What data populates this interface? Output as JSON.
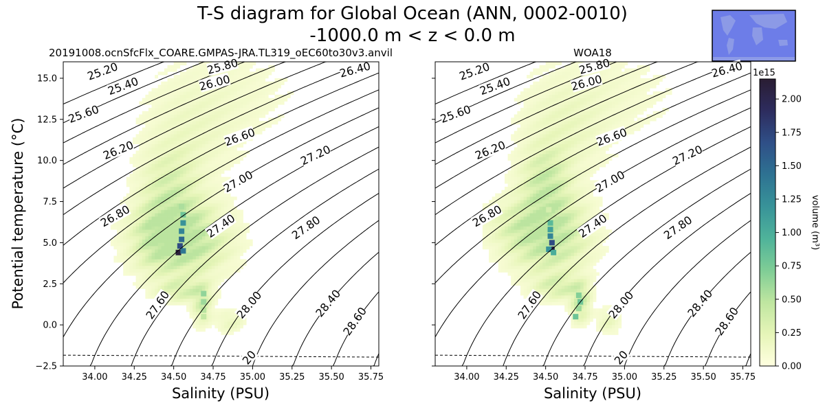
{
  "figure": {
    "title_line1": "T-S diagram for Global Ocean (ANN, 0002-0010)",
    "title_line2": "-1000.0 m < z < 0.0 m"
  },
  "colorbar": {
    "label": "volume (m$^3$)",
    "label_display": "volume (m³)",
    "offset_text": "1e15",
    "ticks": [
      "0.00",
      "0.25",
      "0.50",
      "0.75",
      "1.00",
      "1.25",
      "1.50",
      "1.75",
      "2.00"
    ],
    "max": 2.15,
    "colormap": [
      "#ffffe0",
      "#e6f5b8",
      "#bfe6a0",
      "#7fcd96",
      "#4fb39a",
      "#389399",
      "#2e7292",
      "#2f4f87",
      "#2d2c5e",
      "#2a1d33"
    ]
  },
  "chart_data": [
    {
      "type": "heatmap",
      "title": "20191008.ocnSfcFlx_COARE.GMPAS-JRA.TL319_oEC60to30v3.anvil",
      "xlabel": "Salinity (PSU)",
      "ylabel": "Potential temperature ($^\\circ$C)",
      "ylabel_display": "Potential temperature (°C)",
      "xlim": [
        33.8,
        35.8
      ],
      "ylim": [
        -2.5,
        16.0
      ],
      "xticks": [
        "34.00",
        "34.25",
        "34.50",
        "34.75",
        "35.00",
        "35.25",
        "35.50",
        "35.75"
      ],
      "yticks": [
        "−2.5",
        "0.0",
        "2.5",
        "5.0",
        "7.5",
        "10.0",
        "12.5",
        "15.0"
      ],
      "show_yticklabels": true,
      "density_contours": [
        25.2,
        25.4,
        25.6,
        25.8,
        26.0,
        26.2,
        26.4,
        26.6,
        26.8,
        27.0,
        27.2,
        27.4,
        27.6,
        27.8,
        28.0,
        28.2,
        28.4,
        28.6,
        28.8,
        29.0,
        29.2
      ],
      "contour_labels": [
        {
          "text": "25.20",
          "s": 34.05,
          "t": 15.4,
          "angle": -20
        },
        {
          "text": "25.40",
          "s": 34.18,
          "t": 14.5,
          "angle": -20
        },
        {
          "text": "25.60",
          "s": 33.93,
          "t": 12.8,
          "angle": -20
        },
        {
          "text": "25.80",
          "s": 34.81,
          "t": 15.7,
          "angle": -15
        },
        {
          "text": "26.00",
          "s": 34.76,
          "t": 14.7,
          "angle": -15
        },
        {
          "text": "26.20",
          "s": 34.15,
          "t": 10.6,
          "angle": -22
        },
        {
          "text": "26.40",
          "s": 35.65,
          "t": 15.5,
          "angle": -15
        },
        {
          "text": "26.60",
          "s": 34.92,
          "t": 11.4,
          "angle": -20
        },
        {
          "text": "26.80",
          "s": 34.13,
          "t": 6.6,
          "angle": -30
        },
        {
          "text": "27.00",
          "s": 34.91,
          "t": 8.7,
          "angle": -30
        },
        {
          "text": "27.20",
          "s": 35.4,
          "t": 10.3,
          "angle": -25
        },
        {
          "text": "27.40",
          "s": 34.8,
          "t": 6.0,
          "angle": -35
        },
        {
          "text": "27.60",
          "s": 34.4,
          "t": 1.2,
          "angle": -55
        },
        {
          "text": "27.80",
          "s": 35.34,
          "t": 5.9,
          "angle": -35
        },
        {
          "text": "28.00",
          "s": 34.98,
          "t": 1.2,
          "angle": -50
        },
        {
          "text": "28.40",
          "s": 35.48,
          "t": 1.3,
          "angle": -50
        },
        {
          "text": "28.60",
          "s": 35.65,
          "t": 0.2,
          "angle": -55
        },
        {
          "text": "20",
          "s": 34.98,
          "t": -2.0,
          "angle": -50
        }
      ],
      "freezing_line": {
        "s": [
          33.8,
          35.8
        ],
        "t": [
          -1.84,
          -1.96
        ]
      },
      "clusters": [
        {
          "s": 34.55,
          "t": 5.2,
          "ss": 0.18,
          "st": 1.4,
          "w": 0.45
        },
        {
          "s": 34.48,
          "t": 8.2,
          "ss": 0.12,
          "st": 1.6,
          "w": 0.22
        },
        {
          "s": 34.62,
          "t": 11.5,
          "ss": 0.2,
          "st": 2.0,
          "w": 0.08
        },
        {
          "s": 34.85,
          "t": 14.0,
          "ss": 0.3,
          "st": 1.8,
          "w": 0.05
        },
        {
          "s": 34.55,
          "t": 2.1,
          "ss": 0.1,
          "st": 0.45,
          "w": 0.22
        },
        {
          "s": 34.68,
          "t": 1.3,
          "ss": 0.04,
          "st": 0.8,
          "w": 0.25
        },
        {
          "s": 34.86,
          "t": 0.2,
          "ss": 0.06,
          "st": 0.45,
          "w": 0.12
        },
        {
          "s": 34.4,
          "t": 5.5,
          "ss": 0.1,
          "st": 1.3,
          "w": 0.15
        }
      ],
      "core": [
        {
          "s": 34.55,
          "t": 7.2,
          "v": 0.55
        },
        {
          "s": 34.56,
          "t": 6.7,
          "v": 0.8
        },
        {
          "s": 34.56,
          "t": 6.2,
          "v": 1.2
        },
        {
          "s": 34.55,
          "t": 5.7,
          "v": 1.3
        },
        {
          "s": 34.55,
          "t": 5.2,
          "v": 1.5
        },
        {
          "s": 34.54,
          "t": 4.8,
          "v": 1.7
        },
        {
          "s": 34.53,
          "t": 4.4,
          "v": 2.1
        },
        {
          "s": 34.56,
          "t": 4.5,
          "v": 1.4
        },
        {
          "s": 34.69,
          "t": 1.9,
          "v": 0.65
        },
        {
          "s": 34.69,
          "t": 1.4,
          "v": 0.6
        },
        {
          "s": 34.69,
          "t": 0.9,
          "v": 0.5
        },
        {
          "s": 34.69,
          "t": 0.5,
          "v": 0.45
        }
      ]
    },
    {
      "type": "heatmap",
      "title": "WOA18",
      "xlabel": "Salinity (PSU)",
      "ylabel": "",
      "xlim": [
        33.8,
        35.8
      ],
      "ylim": [
        -2.5,
        16.0
      ],
      "xticks": [
        "34.00",
        "34.25",
        "34.50",
        "34.75",
        "35.00",
        "35.25",
        "35.50",
        "35.75"
      ],
      "yticks": [
        "−2.5",
        "0.0",
        "2.5",
        "5.0",
        "7.5",
        "10.0",
        "12.5",
        "15.0"
      ],
      "show_yticklabels": false,
      "density_contours": [
        25.2,
        25.4,
        25.6,
        25.8,
        26.0,
        26.2,
        26.4,
        26.6,
        26.8,
        27.0,
        27.2,
        27.4,
        27.6,
        27.8,
        28.0,
        28.2,
        28.4,
        28.6,
        28.8,
        29.0,
        29.2
      ],
      "contour_labels": [
        {
          "text": "25.20",
          "s": 34.05,
          "t": 15.4,
          "angle": -20
        },
        {
          "text": "25.40",
          "s": 34.18,
          "t": 14.5,
          "angle": -20
        },
        {
          "text": "25.60",
          "s": 33.93,
          "t": 12.8,
          "angle": -20
        },
        {
          "text": "25.80",
          "s": 34.81,
          "t": 15.7,
          "angle": -15
        },
        {
          "text": "26.00",
          "s": 34.76,
          "t": 14.7,
          "angle": -15
        },
        {
          "text": "26.20",
          "s": 34.15,
          "t": 10.6,
          "angle": -22
        },
        {
          "text": "26.40",
          "s": 35.65,
          "t": 15.5,
          "angle": -15
        },
        {
          "text": "26.60",
          "s": 34.92,
          "t": 11.4,
          "angle": -20
        },
        {
          "text": "26.80",
          "s": 34.13,
          "t": 6.6,
          "angle": -30
        },
        {
          "text": "27.00",
          "s": 34.91,
          "t": 8.7,
          "angle": -30
        },
        {
          "text": "27.20",
          "s": 35.4,
          "t": 10.3,
          "angle": -25
        },
        {
          "text": "27.40",
          "s": 34.8,
          "t": 6.0,
          "angle": -35
        },
        {
          "text": "27.60",
          "s": 34.4,
          "t": 1.2,
          "angle": -55
        },
        {
          "text": "27.80",
          "s": 35.34,
          "t": 5.9,
          "angle": -35
        },
        {
          "text": "28.00",
          "s": 34.98,
          "t": 1.2,
          "angle": -50
        },
        {
          "text": "28.40",
          "s": 35.48,
          "t": 1.3,
          "angle": -50
        },
        {
          "text": "28.60",
          "s": 35.65,
          "t": 0.2,
          "angle": -55
        },
        {
          "text": "20",
          "s": 34.98,
          "t": -2.0,
          "angle": -50
        }
      ],
      "freezing_line": {
        "s": [
          33.8,
          35.8
        ],
        "t": [
          -1.84,
          -1.96
        ]
      },
      "clusters": [
        {
          "s": 34.52,
          "t": 5.5,
          "ss": 0.16,
          "st": 1.5,
          "w": 0.4
        },
        {
          "s": 34.5,
          "t": 8.6,
          "ss": 0.1,
          "st": 1.4,
          "w": 0.28
        },
        {
          "s": 34.62,
          "t": 11.8,
          "ss": 0.18,
          "st": 2.0,
          "w": 0.1
        },
        {
          "s": 34.9,
          "t": 14.0,
          "ss": 0.3,
          "st": 1.8,
          "w": 0.05
        },
        {
          "s": 34.58,
          "t": 2.3,
          "ss": 0.1,
          "st": 0.5,
          "w": 0.22
        },
        {
          "s": 34.72,
          "t": 1.4,
          "ss": 0.04,
          "st": 0.8,
          "w": 0.3
        },
        {
          "s": 34.9,
          "t": 0.2,
          "ss": 0.05,
          "st": 0.5,
          "w": 0.12
        },
        {
          "s": 34.3,
          "t": 6.0,
          "ss": 0.12,
          "st": 1.0,
          "w": 0.12
        }
      ],
      "core": [
        {
          "s": 34.52,
          "t": 7.0,
          "v": 0.35
        },
        {
          "s": 34.53,
          "t": 6.2,
          "v": 0.9
        },
        {
          "s": 34.53,
          "t": 5.8,
          "v": 1.1
        },
        {
          "s": 34.53,
          "t": 5.4,
          "v": 1.3
        },
        {
          "s": 34.54,
          "t": 5.0,
          "v": 1.7
        },
        {
          "s": 34.54,
          "t": 4.6,
          "v": 2.0
        },
        {
          "s": 34.52,
          "t": 4.6,
          "v": 1.2
        },
        {
          "s": 34.55,
          "t": 4.4,
          "v": 1.0
        },
        {
          "s": 34.71,
          "t": 1.8,
          "v": 0.7
        },
        {
          "s": 34.72,
          "t": 1.4,
          "v": 0.8
        },
        {
          "s": 34.71,
          "t": 1.0,
          "v": 0.6
        },
        {
          "s": 34.69,
          "t": 0.5,
          "v": 0.8
        }
      ]
    }
  ]
}
